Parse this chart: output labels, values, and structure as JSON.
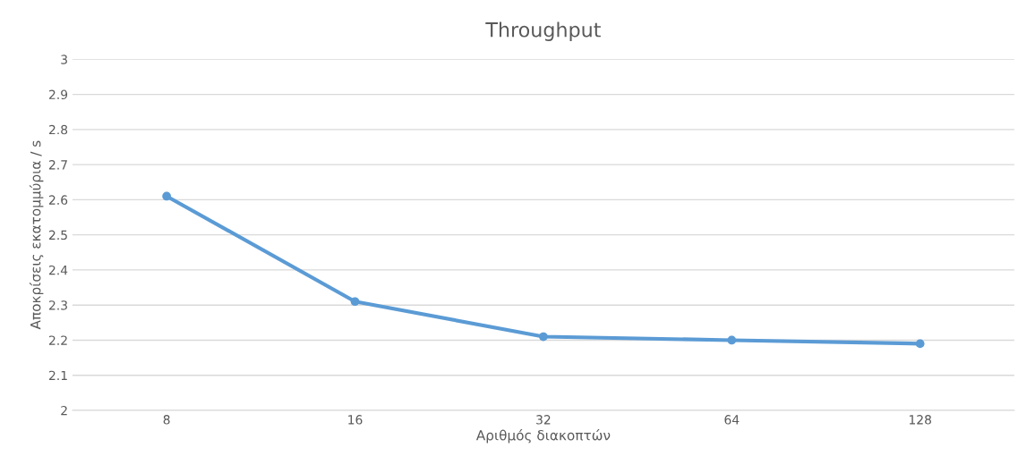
{
  "chart_data": {
    "type": "line",
    "title": "Throughput",
    "xlabel": "Αριθμός διακοπτών",
    "ylabel": "Αποκρίσεις εκατομμύρια / s",
    "categories": [
      "8",
      "16",
      "32",
      "64",
      "128"
    ],
    "series": [
      {
        "color": "#5b9bd5",
        "values": [
          2.61,
          2.31,
          2.21,
          2.2,
          2.19
        ]
      }
    ],
    "ylim": [
      2,
      3
    ],
    "yticks": [
      2,
      2.1,
      2.2,
      2.3,
      2.4,
      2.5,
      2.6,
      2.7,
      2.8,
      2.9,
      3
    ],
    "grid": "y",
    "marker": "circle",
    "line_style": "solid"
  }
}
